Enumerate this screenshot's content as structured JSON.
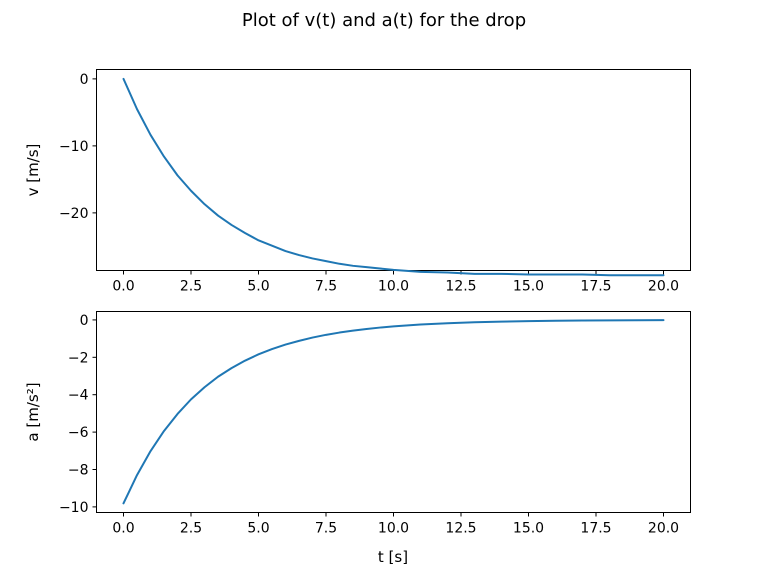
{
  "figure": {
    "title": "Plot of v(t) and a(t) for the drop"
  },
  "chart_data": [
    {
      "type": "line",
      "xlabel": "",
      "ylabel": "v [m/s]",
      "xlim": [
        -1,
        21
      ],
      "ylim": [
        -28.6,
        1.4
      ],
      "xticks": [
        0,
        2.5,
        5,
        7.5,
        10,
        12.5,
        15,
        17.5,
        20
      ],
      "xtick_labels": [
        "0.0",
        "2.5",
        "5.0",
        "7.5",
        "10.0",
        "12.5",
        "15.0",
        "17.5",
        "20.0"
      ],
      "yticks": [
        0,
        -10,
        -20
      ],
      "ytick_labels": [
        "0",
        "−10",
        "−20"
      ],
      "grid": false,
      "color": "#1f77b4",
      "series": [
        {
          "x": [
            0,
            0.5,
            1,
            1.5,
            2,
            2.5,
            3,
            3.5,
            4,
            4.5,
            5,
            5.5,
            6,
            6.5,
            7,
            7.5,
            8,
            8.5,
            9,
            9.5,
            10,
            11,
            12,
            13,
            14,
            15,
            16,
            17,
            18,
            19,
            20
          ],
          "values": [
            0,
            -4.51,
            -8.35,
            -11.6,
            -14.4,
            -16.7,
            -18.7,
            -20.4,
            -21.8,
            -23.0,
            -24.1,
            -24.9,
            -25.7,
            -26.3,
            -26.8,
            -27.2,
            -27.6,
            -27.9,
            -28.1,
            -28.3,
            -28.5,
            -28.8,
            -28.9,
            -29.1,
            -29.1,
            -29.2,
            -29.2,
            -29.2,
            -29.3,
            -29.3,
            -29.3
          ]
        }
      ]
    },
    {
      "type": "line",
      "xlabel": "t [s]",
      "ylabel": "a [m/s²]",
      "xlim": [
        -1,
        21
      ],
      "ylim": [
        -10.3,
        0.45
      ],
      "xticks": [
        0,
        2.5,
        5,
        7.5,
        10,
        12.5,
        15,
        17.5,
        20
      ],
      "xtick_labels": [
        "0.0",
        "2.5",
        "5.0",
        "7.5",
        "10.0",
        "12.5",
        "15.0",
        "17.5",
        "20.0"
      ],
      "yticks": [
        0,
        -2,
        -4,
        -6,
        -8,
        -10
      ],
      "ytick_labels": [
        "0",
        "−2",
        "−4",
        "−6",
        "−8",
        "−10"
      ],
      "grid": false,
      "color": "#1f77b4",
      "series": [
        {
          "x": [
            0,
            0.5,
            1,
            1.5,
            2,
            2.5,
            3,
            3.5,
            4,
            4.5,
            5,
            5.5,
            6,
            6.5,
            7,
            7.5,
            8,
            8.5,
            9,
            9.5,
            10,
            11,
            12,
            13,
            14,
            15,
            16,
            17,
            18,
            19,
            20
          ],
          "values": [
            -9.81,
            -8.3,
            -7.02,
            -5.94,
            -5.03,
            -4.25,
            -3.6,
            -3.04,
            -2.58,
            -2.18,
            -1.84,
            -1.56,
            -1.32,
            -1.12,
            -0.944,
            -0.798,
            -0.676,
            -0.572,
            -0.484,
            -0.409,
            -0.346,
            -0.248,
            -0.177,
            -0.127,
            -0.0908,
            -0.065,
            -0.0466,
            -0.0333,
            -0.0239,
            -0.0171,
            -0.0122
          ]
        }
      ]
    }
  ]
}
